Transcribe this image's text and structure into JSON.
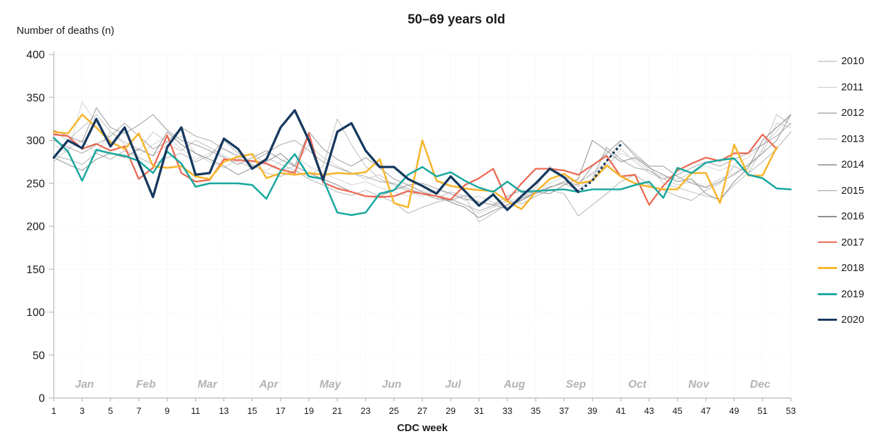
{
  "title": "50–69 years old",
  "y_axis": {
    "label": "Number of deaths (n)",
    "min": 0,
    "max": 400,
    "step": 50,
    "tick_values": [
      0,
      50,
      100,
      150,
      200,
      250,
      300,
      350,
      400
    ]
  },
  "x_axis": {
    "label": "CDC week",
    "tick_values": [
      1,
      3,
      5,
      7,
      9,
      11,
      13,
      15,
      17,
      19,
      21,
      23,
      25,
      27,
      29,
      31,
      33,
      35,
      37,
      39,
      41,
      43,
      45,
      47,
      49,
      51,
      53
    ],
    "month_labels": [
      "Jan",
      "Feb",
      "Mar",
      "Apr",
      "May",
      "Jun",
      "Jul",
      "Aug",
      "Sep",
      "Oct",
      "Nov",
      "Dec"
    ]
  },
  "colors": {
    "grid": "#e4e4e4",
    "axis": "#b7b7b7",
    "tick_text": "#1a1a1a",
    "month_text": "#b3b3b3"
  },
  "chart_data": {
    "type": "line",
    "title": "50–69 years old",
    "xlabel": "CDC week",
    "ylabel": "Number of deaths (n)",
    "xlim": [
      1,
      53
    ],
    "ylim": [
      0,
      400
    ],
    "grid": "dotted",
    "legend_position": "right",
    "x_unit": "CDC week (1-53)",
    "series": [
      {
        "name": "2010",
        "color": "#d4d4d4",
        "width": 1,
        "values": [
          295,
          285,
          345,
          320,
          300,
          290,
          282,
          295,
          305,
          290,
          278,
          285,
          290,
          280,
          270,
          265,
          275,
          282,
          270,
          262,
          255,
          248,
          252,
          245,
          240,
          235,
          242,
          238,
          230,
          225,
          215,
          222,
          228,
          235,
          242,
          250,
          258,
          252,
          260,
          272,
          285,
          278,
          265,
          258,
          255,
          262,
          270,
          265,
          272,
          280,
          295,
          310,
          330
        ]
      },
      {
        "name": "2011",
        "color": "#c9c9c9",
        "width": 1,
        "values": [
          275,
          290,
          300,
          285,
          310,
          295,
          288,
          310,
          298,
          305,
          285,
          275,
          268,
          278,
          285,
          272,
          265,
          270,
          295,
          280,
          270,
          262,
          255,
          260,
          248,
          240,
          235,
          242,
          238,
          230,
          235,
          228,
          222,
          230,
          238,
          245,
          252,
          246,
          255,
          268,
          290,
          275,
          262,
          255,
          248,
          252,
          246,
          255,
          262,
          270,
          285,
          320,
          315
        ]
      },
      {
        "name": "2012",
        "color": "#bebebe",
        "width": 1,
        "values": [
          310,
          300,
          315,
          330,
          310,
          298,
          290,
          282,
          295,
          288,
          300,
          292,
          282,
          275,
          268,
          280,
          272,
          265,
          258,
          270,
          325,
          295,
          270,
          255,
          248,
          242,
          238,
          232,
          240,
          235,
          205,
          215,
          225,
          232,
          245,
          270,
          258,
          250,
          262,
          275,
          300,
          285,
          270,
          250,
          245,
          240,
          235,
          232,
          248,
          262,
          290,
          330,
          318
        ]
      },
      {
        "name": "2013",
        "color": "#b1b1b1",
        "width": 1,
        "values": [
          282,
          278,
          272,
          285,
          278,
          288,
          280,
          272,
          280,
          285,
          275,
          282,
          300,
          285,
          272,
          262,
          258,
          265,
          255,
          248,
          240,
          236,
          242,
          235,
          228,
          215,
          222,
          228,
          232,
          225,
          218,
          224,
          230,
          226,
          235,
          242,
          238,
          212,
          225,
          238,
          252,
          260,
          248,
          242,
          235,
          230,
          242,
          250,
          270,
          262,
          275,
          290,
          310
        ]
      },
      {
        "name": "2014",
        "color": "#a5a5a5",
        "width": 1,
        "values": [
          300,
          292,
          285,
          295,
          305,
          320,
          305,
          290,
          298,
          315,
          305,
          300,
          290,
          282,
          275,
          285,
          295,
          300,
          288,
          275,
          268,
          262,
          258,
          252,
          250,
          244,
          238,
          232,
          230,
          236,
          228,
          225,
          220,
          232,
          240,
          246,
          250,
          242,
          255,
          292,
          278,
          268,
          265,
          255,
          260,
          268,
          275,
          270,
          278,
          285,
          295,
          305,
          320
        ]
      },
      {
        "name": "2015",
        "color": "#999999",
        "width": 1,
        "values": [
          312,
          305,
          298,
          338,
          315,
          308,
          318,
          330,
          312,
          300,
          295,
          288,
          280,
          272,
          280,
          288,
          278,
          270,
          310,
          290,
          278,
          270,
          280,
          268,
          255,
          248,
          250,
          244,
          238,
          232,
          228,
          225,
          235,
          242,
          238,
          245,
          252,
          248,
          270,
          285,
          300,
          282,
          270,
          270,
          258,
          250,
          245,
          252,
          260,
          272,
          285,
          300,
          330
        ]
      },
      {
        "name": "2016",
        "color": "#8c8c8c",
        "width": 1,
        "values": [
          280,
          272,
          265,
          278,
          285,
          280,
          290,
          282,
          310,
          295,
          285,
          278,
          270,
          260,
          268,
          275,
          285,
          270,
          262,
          255,
          248,
          240,
          235,
          235,
          242,
          248,
          240,
          235,
          228,
          222,
          210,
          218,
          225,
          230,
          240,
          238,
          248,
          255,
          300,
          288,
          275,
          280,
          268,
          260,
          252,
          255,
          238,
          230,
          252,
          268,
          300,
          315,
          330
        ]
      },
      {
        "name": "2017",
        "color": "#ec6852",
        "width": 2.3,
        "values": [
          307,
          305,
          290,
          296,
          288,
          293,
          255,
          268,
          306,
          262,
          252,
          254,
          278,
          277,
          276,
          273,
          266,
          262,
          308,
          251,
          244,
          240,
          235,
          234,
          235,
          241,
          238,
          235,
          231,
          248,
          256,
          267,
          230,
          250,
          267,
          267,
          265,
          260,
          271,
          282,
          258,
          260,
          225,
          247,
          265,
          273,
          280,
          276,
          285,
          285,
          307,
          290
        ]
      },
      {
        "name": "2018",
        "color": "#f7b52c",
        "width": 2.6,
        "values": [
          310,
          308,
          330,
          315,
          298,
          290,
          308,
          270,
          268,
          270,
          258,
          255,
          275,
          281,
          284,
          256,
          262,
          260,
          262,
          260,
          262,
          261,
          263,
          278,
          227,
          222,
          300,
          253,
          247,
          244,
          242,
          241,
          229,
          220,
          240,
          255,
          261,
          250,
          253,
          271,
          258,
          250,
          246,
          243,
          243,
          262,
          262,
          227,
          295,
          259,
          259,
          292
        ]
      },
      {
        "name": "2019",
        "color": "#1ba8a0",
        "width": 2.6,
        "values": [
          303,
          287,
          253,
          289,
          285,
          282,
          276,
          262,
          287,
          273,
          246,
          250,
          250,
          250,
          248,
          232,
          264,
          284,
          258,
          255,
          216,
          213,
          216,
          238,
          242,
          260,
          269,
          258,
          263,
          253,
          245,
          240,
          252,
          240,
          241,
          242,
          243,
          240,
          243,
          243,
          243,
          248,
          252,
          233,
          268,
          262,
          274,
          277,
          279,
          260,
          256,
          244,
          243
        ]
      },
      {
        "name": "2020",
        "color": "#16395f",
        "width": 3.4,
        "values": [
          280,
          300,
          291,
          325,
          293,
          315,
          274,
          234,
          292,
          315,
          260,
          262,
          302,
          290,
          267,
          278,
          315,
          335,
          300,
          254,
          310,
          320,
          288,
          269,
          269,
          255,
          247,
          238,
          258,
          241,
          224,
          237,
          219,
          235,
          250,
          267,
          257,
          240
        ]
      }
    ],
    "forecast_2020_dotted": {
      "name": "2020 projection (dotted)",
      "color": "#16395f",
      "weeks": [
        38,
        39,
        40,
        41
      ],
      "values": [
        240,
        253,
        276,
        295
      ]
    }
  }
}
